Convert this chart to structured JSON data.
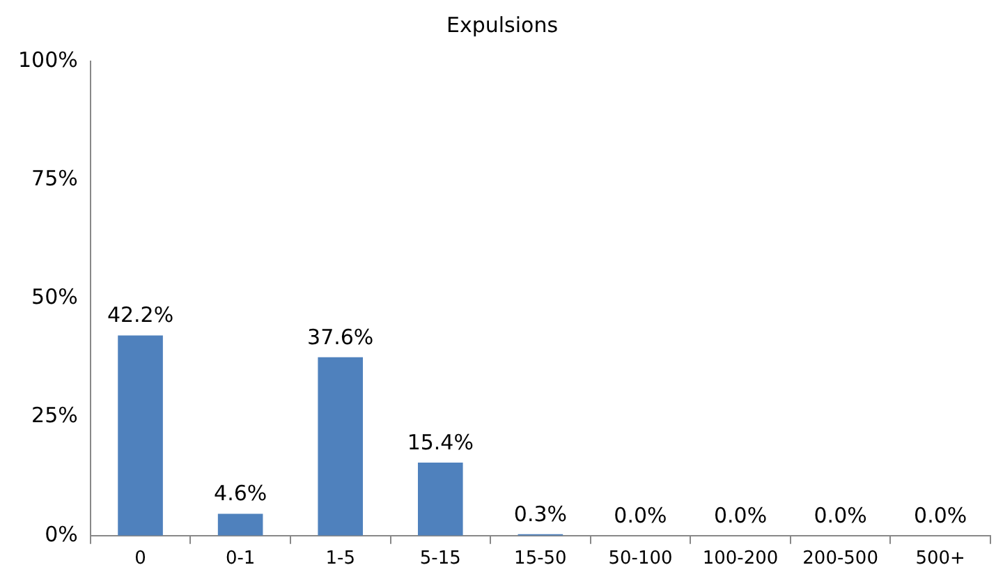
{
  "chart_data": {
    "type": "bar",
    "title": "Expulsions",
    "categories": [
      "0",
      "0-1",
      "1-5",
      "5-15",
      "15-50",
      "50-100",
      "100-200",
      "200-500",
      "500+"
    ],
    "values": [
      42.2,
      4.6,
      37.6,
      15.4,
      0.3,
      0.0,
      0.0,
      0.0,
      0.0
    ],
    "value_labels": [
      "42.2%",
      "4.6%",
      "37.6%",
      "15.4%",
      "0.3%",
      "0.0%",
      "0.0%",
      "0.0%",
      "0.0%"
    ],
    "color": "#4f81bd",
    "ylim": [
      0,
      100
    ],
    "yticks": [
      {
        "value": 0,
        "label": "0%"
      },
      {
        "value": 25,
        "label": "25%"
      },
      {
        "value": 50,
        "label": "50%"
      },
      {
        "value": 75,
        "label": "75%"
      },
      {
        "value": 100,
        "label": "100%"
      }
    ],
    "grid": false,
    "legend": false
  }
}
